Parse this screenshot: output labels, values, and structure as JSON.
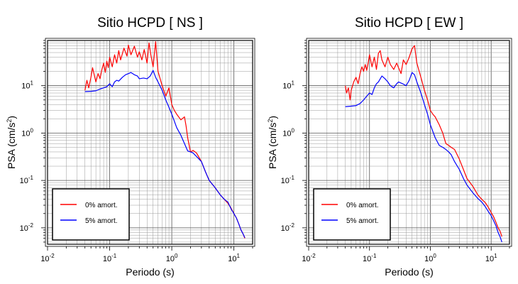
{
  "chart_data": [
    {
      "type": "line",
      "title": "Sitio HCPD [ NS ]",
      "xlabel": "Periodo (s)",
      "ylabel_main": "PSA (cm/s",
      "ylabel_sup": "2",
      "ylabel_end": ")",
      "xscale": "log",
      "yscale": "log",
      "xlim": [
        0.01,
        20
      ],
      "ylim": [
        0.0045,
        90
      ],
      "grid": true,
      "legend_position": "bottom-left",
      "xticks": [
        {
          "base": "10",
          "exp": "-2",
          "value": 0.01
        },
        {
          "base": "10",
          "exp": "-1",
          "value": 0.1
        },
        {
          "base": "10",
          "exp": "0",
          "value": 1
        },
        {
          "base": "10",
          "exp": "1",
          "value": 10
        }
      ],
      "yticks": [
        {
          "base": "10",
          "exp": "-2",
          "value": 0.01
        },
        {
          "base": "10",
          "exp": "-1",
          "value": 0.1
        },
        {
          "base": "10",
          "exp": "0",
          "value": 1
        },
        {
          "base": "10",
          "exp": "1",
          "value": 10
        }
      ],
      "series": [
        {
          "name": "0% amort.",
          "color": "#ff0000",
          "x": [
            0.04,
            0.043,
            0.046,
            0.05,
            0.053,
            0.057,
            0.06,
            0.065,
            0.07,
            0.075,
            0.08,
            0.085,
            0.09,
            0.095,
            0.1,
            0.11,
            0.12,
            0.13,
            0.14,
            0.15,
            0.17,
            0.19,
            0.2,
            0.22,
            0.25,
            0.28,
            0.3,
            0.33,
            0.36,
            0.4,
            0.43,
            0.46,
            0.5,
            0.55,
            0.6,
            0.7,
            0.8,
            0.9,
            1.0,
            1.1,
            1.2,
            1.4,
            1.6,
            1.7,
            1.8,
            2.0,
            2.2,
            2.5,
            3.0,
            3.5,
            4.0,
            5.0,
            6.0,
            7.0,
            8.0,
            9.0,
            10.0,
            11.0,
            12.0,
            13.0,
            14.0,
            15.0
          ],
          "y": [
            8.0,
            13.0,
            9.0,
            15.0,
            24.0,
            16.0,
            12.0,
            18.0,
            14.0,
            22.0,
            30.0,
            19.0,
            33.0,
            24.0,
            40.0,
            25.0,
            45.0,
            30.0,
            55.0,
            35.0,
            62.0,
            42.0,
            72.0,
            45.0,
            68.0,
            40.0,
            52.0,
            35.0,
            58.0,
            30.0,
            80.0,
            45.0,
            25.0,
            85.0,
            20.0,
            10.0,
            6.0,
            9.0,
            4.0,
            3.0,
            2.5,
            1.9,
            2.2,
            1.4,
            0.8,
            0.4,
            0.43,
            0.38,
            0.25,
            0.15,
            0.1,
            0.07,
            0.05,
            0.04,
            0.033,
            0.026,
            0.02,
            0.016,
            0.012,
            0.009,
            0.0075,
            0.006
          ]
        },
        {
          "name": "5% amort.",
          "color": "#0000ff",
          "x": [
            0.04,
            0.05,
            0.06,
            0.07,
            0.08,
            0.09,
            0.1,
            0.11,
            0.12,
            0.13,
            0.14,
            0.16,
            0.18,
            0.2,
            0.22,
            0.25,
            0.28,
            0.3,
            0.35,
            0.4,
            0.45,
            0.5,
            0.55,
            0.6,
            0.7,
            0.8,
            0.9,
            1.0,
            1.2,
            1.4,
            1.6,
            1.8,
            2.0,
            2.2,
            2.5,
            3.0,
            3.5,
            4.0,
            5.0,
            6.0,
            7.0,
            8.0,
            9.0,
            10.0,
            11.0,
            12.0,
            13.0,
            14.0,
            15.0
          ],
          "y": [
            7.5,
            7.6,
            7.8,
            8.5,
            9.0,
            9.5,
            11.0,
            9.5,
            12.0,
            13.0,
            12.5,
            15.0,
            17.0,
            18.0,
            19.0,
            17.0,
            16.0,
            14.0,
            14.5,
            14.0,
            16.0,
            21.0,
            15.0,
            12.0,
            8.0,
            5.0,
            3.5,
            2.5,
            1.3,
            0.9,
            0.6,
            0.42,
            0.4,
            0.38,
            0.32,
            0.25,
            0.15,
            0.1,
            0.07,
            0.05,
            0.04,
            0.035,
            0.025,
            0.02,
            0.016,
            0.012,
            0.009,
            0.0075,
            0.0062
          ]
        }
      ]
    },
    {
      "type": "line",
      "title": "Sitio HCPD [ EW ]",
      "xlabel": "Periodo (s)",
      "ylabel_main": "PSA (cm/s",
      "ylabel_sup": "2",
      "ylabel_end": ")",
      "xscale": "log",
      "yscale": "log",
      "xlim": [
        0.01,
        20
      ],
      "ylim": [
        0.0045,
        90
      ],
      "grid": true,
      "legend_position": "bottom-left",
      "xticks": [
        {
          "base": "10",
          "exp": "-2",
          "value": 0.01
        },
        {
          "base": "10",
          "exp": "-1",
          "value": 0.1
        },
        {
          "base": "10",
          "exp": "0",
          "value": 1
        },
        {
          "base": "10",
          "exp": "1",
          "value": 10
        }
      ],
      "yticks": [
        {
          "base": "10",
          "exp": "-2",
          "value": 0.01
        },
        {
          "base": "10",
          "exp": "-1",
          "value": 0.1
        },
        {
          "base": "10",
          "exp": "0",
          "value": 1
        },
        {
          "base": "10",
          "exp": "1",
          "value": 10
        }
      ],
      "series": [
        {
          "name": "0% amort.",
          "color": "#ff0000",
          "x": [
            0.04,
            0.042,
            0.045,
            0.048,
            0.05,
            0.055,
            0.06,
            0.065,
            0.07,
            0.075,
            0.08,
            0.085,
            0.09,
            0.095,
            0.1,
            0.11,
            0.12,
            0.13,
            0.14,
            0.15,
            0.16,
            0.18,
            0.2,
            0.22,
            0.25,
            0.28,
            0.3,
            0.33,
            0.36,
            0.4,
            0.45,
            0.5,
            0.55,
            0.6,
            0.7,
            0.8,
            0.9,
            1.0,
            1.1,
            1.2,
            1.4,
            1.6,
            1.8,
            2.0,
            2.2,
            2.5,
            3.0,
            3.5,
            4.0,
            5.0,
            6.0,
            7.0,
            8.0,
            9.0,
            10.0,
            11.0,
            12.0,
            13.0,
            14.0,
            15.0
          ],
          "y": [
            10.0,
            7.0,
            9.0,
            5.0,
            8.0,
            12.0,
            15.0,
            11.0,
            18.0,
            25.0,
            20.0,
            28.0,
            21.0,
            30.0,
            45.0,
            25.0,
            40.0,
            22.0,
            48.0,
            55.0,
            35.0,
            25.0,
            40.0,
            28.0,
            22.0,
            30.0,
            24.0,
            18.0,
            35.0,
            28.0,
            40.0,
            60.0,
            70.0,
            30.0,
            15.0,
            8.0,
            5.0,
            3.0,
            2.5,
            2.2,
            1.5,
            1.0,
            0.6,
            0.55,
            0.5,
            0.45,
            0.28,
            0.17,
            0.11,
            0.075,
            0.05,
            0.04,
            0.034,
            0.027,
            0.021,
            0.017,
            0.013,
            0.01,
            0.0085,
            0.0065
          ]
        },
        {
          "name": "5% amort.",
          "color": "#0000ff",
          "x": [
            0.04,
            0.05,
            0.06,
            0.07,
            0.08,
            0.09,
            0.1,
            0.11,
            0.12,
            0.13,
            0.14,
            0.16,
            0.18,
            0.2,
            0.22,
            0.25,
            0.28,
            0.3,
            0.35,
            0.4,
            0.45,
            0.5,
            0.55,
            0.6,
            0.7,
            0.8,
            0.9,
            1.0,
            1.2,
            1.4,
            1.6,
            1.8,
            2.0,
            2.2,
            2.5,
            3.0,
            3.5,
            4.0,
            5.0,
            6.0,
            7.0,
            8.0,
            9.0,
            10.0,
            11.0,
            12.0,
            13.0,
            14.0,
            15.0
          ],
          "y": [
            3.6,
            3.7,
            3.8,
            4.2,
            5.0,
            6.0,
            7.0,
            6.5,
            9.0,
            11.0,
            12.0,
            16.0,
            14.0,
            12.0,
            10.0,
            9.0,
            11.0,
            12.0,
            11.0,
            10.0,
            13.0,
            19.0,
            17.0,
            12.0,
            7.0,
            4.0,
            2.5,
            1.5,
            0.8,
            0.55,
            0.5,
            0.45,
            0.4,
            0.35,
            0.25,
            0.17,
            0.11,
            0.08,
            0.055,
            0.042,
            0.035,
            0.028,
            0.022,
            0.018,
            0.014,
            0.011,
            0.008,
            0.0065,
            0.005
          ]
        }
      ]
    }
  ]
}
